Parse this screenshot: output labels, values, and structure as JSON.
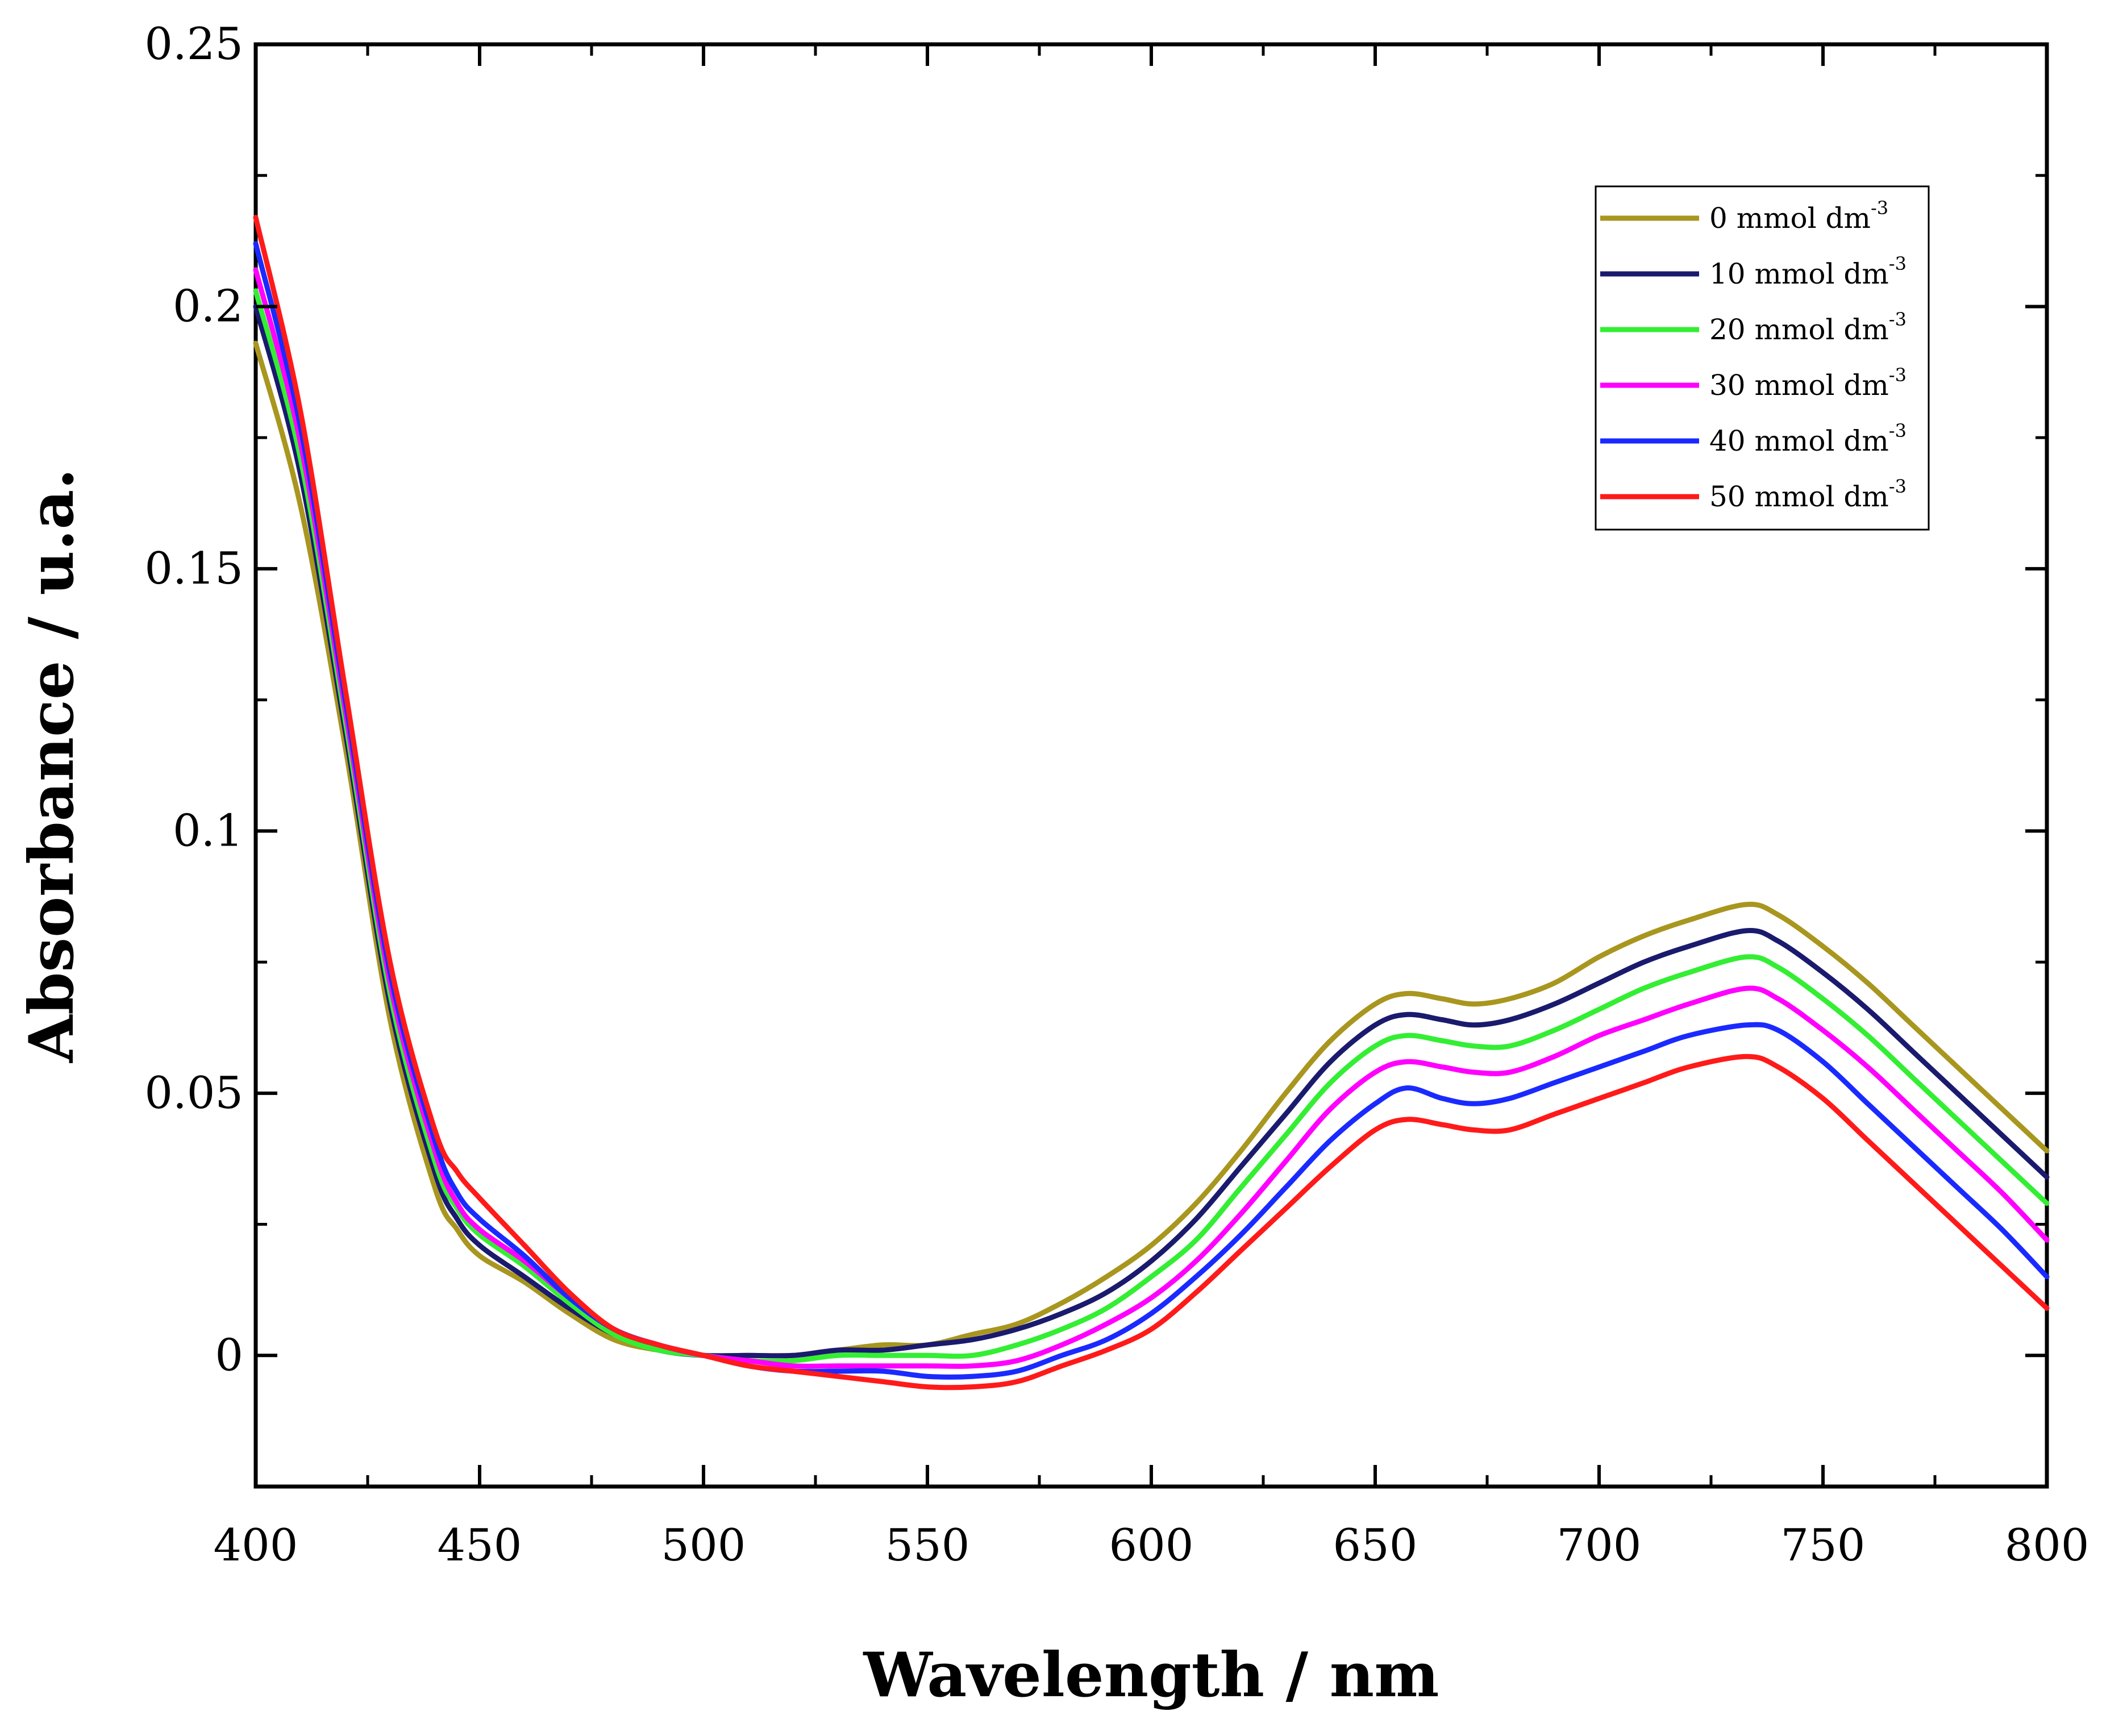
{
  "chart_data": {
    "type": "line",
    "title": "",
    "xlabel": "Wavelength / nm",
    "ylabel": "Absorbance / u.a.",
    "xlim": [
      400,
      800
    ],
    "ylim": [
      -0.025,
      0.25
    ],
    "x_ticks": [
      400,
      450,
      500,
      550,
      600,
      650,
      700,
      750,
      800
    ],
    "x_tick_labels": [
      "400",
      "450",
      "500",
      "550",
      "600",
      "650",
      "700",
      "750",
      "800"
    ],
    "y_ticks": [
      0,
      0.05,
      0.1,
      0.15,
      0.2,
      0.25
    ],
    "y_tick_labels": [
      "0",
      "0.05",
      "0.1",
      "0.15",
      "0.2",
      "0.25"
    ],
    "grid": false,
    "legend_position": "top-right",
    "legend_unit_exponent": "-3",
    "x": [
      400,
      410,
      420,
      430,
      440,
      445,
      450,
      460,
      470,
      480,
      490,
      500,
      510,
      520,
      530,
      540,
      550,
      560,
      570,
      580,
      590,
      600,
      610,
      620,
      630,
      640,
      650,
      657,
      665,
      672,
      680,
      690,
      700,
      710,
      720,
      733,
      740,
      750,
      760,
      770,
      780,
      790,
      800
    ],
    "series": [
      {
        "name": "0 mmol dm",
        "color": "#a8961f",
        "values": [
          0.193,
          0.162,
          0.116,
          0.064,
          0.032,
          0.024,
          0.019,
          0.014,
          0.008,
          0.003,
          0.001,
          0.0,
          0.0,
          0.0,
          0.001,
          0.002,
          0.002,
          0.004,
          0.006,
          0.01,
          0.015,
          0.021,
          0.029,
          0.039,
          0.05,
          0.06,
          0.067,
          0.069,
          0.068,
          0.067,
          0.068,
          0.071,
          0.076,
          0.08,
          0.083,
          0.086,
          0.084,
          0.078,
          0.071,
          0.063,
          0.055,
          0.047,
          0.039
        ]
      },
      {
        "name": "10 mmol dm",
        "color": "#1a1a6e",
        "values": [
          0.2,
          0.168,
          0.119,
          0.067,
          0.035,
          0.026,
          0.021,
          0.015,
          0.009,
          0.004,
          0.001,
          0.0,
          0.0,
          0.0,
          0.001,
          0.001,
          0.002,
          0.003,
          0.005,
          0.008,
          0.012,
          0.018,
          0.026,
          0.036,
          0.046,
          0.056,
          0.063,
          0.065,
          0.064,
          0.063,
          0.064,
          0.067,
          0.071,
          0.075,
          0.078,
          0.081,
          0.079,
          0.073,
          0.066,
          0.058,
          0.05,
          0.042,
          0.034
        ]
      },
      {
        "name": "20 mmol dm",
        "color": "#33ee33",
        "values": [
          0.203,
          0.171,
          0.121,
          0.069,
          0.037,
          0.028,
          0.023,
          0.017,
          0.01,
          0.004,
          0.001,
          0.0,
          -0.001,
          -0.001,
          0.0,
          0.0,
          0.0,
          0.0,
          0.002,
          0.005,
          0.009,
          0.015,
          0.022,
          0.032,
          0.042,
          0.052,
          0.059,
          0.061,
          0.06,
          0.059,
          0.059,
          0.062,
          0.066,
          0.07,
          0.073,
          0.076,
          0.074,
          0.068,
          0.061,
          0.053,
          0.045,
          0.037,
          0.029
        ]
      },
      {
        "name": "30 mmol dm",
        "color": "#ff00ff",
        "values": [
          0.207,
          0.174,
          0.123,
          0.071,
          0.039,
          0.029,
          0.024,
          0.018,
          0.011,
          0.005,
          0.002,
          0.0,
          -0.001,
          -0.002,
          -0.002,
          -0.002,
          -0.002,
          -0.002,
          -0.001,
          0.002,
          0.006,
          0.011,
          0.018,
          0.027,
          0.037,
          0.047,
          0.054,
          0.056,
          0.055,
          0.054,
          0.054,
          0.057,
          0.061,
          0.064,
          0.067,
          0.07,
          0.068,
          0.062,
          0.055,
          0.047,
          0.039,
          0.031,
          0.022
        ]
      },
      {
        "name": "40 mmol dm",
        "color": "#1a2aff",
        "values": [
          0.212,
          0.177,
          0.125,
          0.073,
          0.041,
          0.031,
          0.026,
          0.019,
          0.011,
          0.005,
          0.002,
          0.0,
          -0.002,
          -0.003,
          -0.003,
          -0.003,
          -0.004,
          -0.004,
          -0.003,
          0.0,
          0.003,
          0.008,
          0.015,
          0.023,
          0.032,
          0.041,
          0.048,
          0.051,
          0.049,
          0.048,
          0.049,
          0.052,
          0.055,
          0.058,
          0.061,
          0.063,
          0.062,
          0.056,
          0.048,
          0.04,
          0.032,
          0.024,
          0.015
        ]
      },
      {
        "name": "50 mmol dm",
        "color": "#ff1a1a",
        "values": [
          0.217,
          0.18,
          0.127,
          0.075,
          0.043,
          0.035,
          0.03,
          0.021,
          0.012,
          0.005,
          0.002,
          0.0,
          -0.002,
          -0.003,
          -0.004,
          -0.005,
          -0.006,
          -0.006,
          -0.005,
          -0.002,
          0.001,
          0.005,
          0.012,
          0.02,
          0.028,
          0.036,
          0.043,
          0.045,
          0.044,
          0.043,
          0.043,
          0.046,
          0.049,
          0.052,
          0.055,
          0.057,
          0.055,
          0.049,
          0.041,
          0.033,
          0.025,
          0.017,
          0.009
        ]
      }
    ]
  }
}
